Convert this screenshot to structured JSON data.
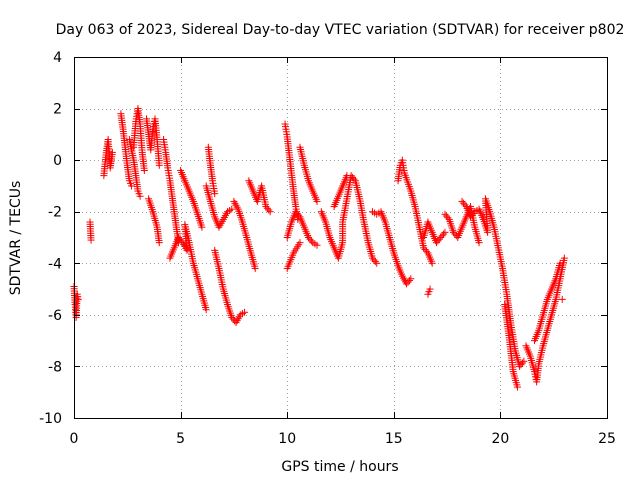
{
  "chart_data": {
    "type": "scatter",
    "title": "Day 063 of 2023, Sidereal Day-to-day VTEC variation (SDTVAR) for receiver p802",
    "xlabel": "GPS time / hours",
    "ylabel": "SDTVAR / TECUs",
    "xlim": [
      0,
      25
    ],
    "ylim": [
      -10,
      4
    ],
    "xticks": [
      0,
      5,
      10,
      15,
      20,
      25
    ],
    "yticks": [
      -10,
      -8,
      -6,
      -4,
      -2,
      0,
      2,
      4
    ],
    "grid": true,
    "marker": "+",
    "color": "#ff0000",
    "series": [
      {
        "name": "SDTVAR",
        "points": [
          [
            0.0,
            -4.9
          ],
          [
            0.05,
            -5.6
          ],
          [
            0.1,
            -6.1
          ],
          [
            0.15,
            -5.2
          ],
          [
            0.2,
            -5.4
          ],
          [
            0.75,
            -2.4
          ],
          [
            0.8,
            -3.1
          ],
          [
            1.4,
            -0.6
          ],
          [
            1.5,
            0.2
          ],
          [
            1.6,
            0.8
          ],
          [
            1.7,
            -0.3
          ],
          [
            1.8,
            0.3
          ],
          [
            2.2,
            1.8
          ],
          [
            2.3,
            1.2
          ],
          [
            2.4,
            0.5
          ],
          [
            2.5,
            -0.2
          ],
          [
            2.6,
            -0.8
          ],
          [
            2.7,
            -1.0
          ],
          [
            2.8,
            0.5
          ],
          [
            2.9,
            1.5
          ],
          [
            3.0,
            2.0
          ],
          [
            3.1,
            1.4
          ],
          [
            3.2,
            0.3
          ],
          [
            3.3,
            -0.4
          ],
          [
            2.6,
            0.8
          ],
          [
            2.8,
            0.0
          ],
          [
            3.0,
            -1.2
          ],
          [
            3.1,
            -1.4
          ],
          [
            3.4,
            1.6
          ],
          [
            3.5,
            1.0
          ],
          [
            3.6,
            0.4
          ],
          [
            3.7,
            1.2
          ],
          [
            3.8,
            1.6
          ],
          [
            3.9,
            0.8
          ],
          [
            4.0,
            -0.2
          ],
          [
            3.5,
            -1.5
          ],
          [
            3.7,
            -2.0
          ],
          [
            3.9,
            -2.6
          ],
          [
            4.0,
            -3.2
          ],
          [
            4.2,
            0.8
          ],
          [
            4.3,
            0.3
          ],
          [
            4.4,
            -0.3
          ],
          [
            4.5,
            -0.8
          ],
          [
            4.6,
            -1.4
          ],
          [
            4.7,
            -2.0
          ],
          [
            4.8,
            -2.6
          ],
          [
            4.9,
            -3.2
          ],
          [
            4.5,
            -3.8
          ],
          [
            4.7,
            -3.4
          ],
          [
            4.9,
            -3.0
          ],
          [
            5.1,
            -3.2
          ],
          [
            5.3,
            -3.5
          ],
          [
            5.2,
            -2.5
          ],
          [
            5.4,
            -3.2
          ],
          [
            5.6,
            -4.0
          ],
          [
            5.8,
            -4.6
          ],
          [
            6.0,
            -5.2
          ],
          [
            6.2,
            -5.8
          ],
          [
            5.0,
            -0.4
          ],
          [
            5.2,
            -0.8
          ],
          [
            5.4,
            -1.2
          ],
          [
            5.6,
            -1.6
          ],
          [
            5.8,
            -2.1
          ],
          [
            6.0,
            -2.6
          ],
          [
            6.3,
            0.5
          ],
          [
            6.4,
            -0.2
          ],
          [
            6.5,
            -0.8
          ],
          [
            6.6,
            -1.3
          ],
          [
            6.2,
            -1.0
          ],
          [
            6.4,
            -1.6
          ],
          [
            6.6,
            -2.2
          ],
          [
            6.8,
            -2.6
          ],
          [
            7.0,
            -2.3
          ],
          [
            7.2,
            -2.0
          ],
          [
            7.4,
            -1.9
          ],
          [
            6.6,
            -3.5
          ],
          [
            6.8,
            -4.2
          ],
          [
            7.0,
            -5.0
          ],
          [
            7.2,
            -5.6
          ],
          [
            7.4,
            -6.1
          ],
          [
            7.6,
            -6.3
          ],
          [
            7.8,
            -6.0
          ],
          [
            8.0,
            -5.9
          ],
          [
            7.5,
            -1.6
          ],
          [
            7.7,
            -1.9
          ],
          [
            7.9,
            -2.4
          ],
          [
            8.1,
            -3.0
          ],
          [
            8.3,
            -3.6
          ],
          [
            8.5,
            -4.2
          ],
          [
            8.2,
            -0.8
          ],
          [
            8.4,
            -1.2
          ],
          [
            8.6,
            -1.6
          ],
          [
            8.8,
            -1.0
          ],
          [
            9.0,
            -1.8
          ],
          [
            9.2,
            -2.0
          ],
          [
            9.9,
            1.4
          ],
          [
            10.0,
            0.9
          ],
          [
            10.1,
            0.2
          ],
          [
            10.2,
            -0.5
          ],
          [
            10.3,
            -1.2
          ],
          [
            10.4,
            -1.8
          ],
          [
            10.5,
            -2.3
          ],
          [
            10.0,
            -3.0
          ],
          [
            10.2,
            -2.4
          ],
          [
            10.4,
            -2.0
          ],
          [
            10.6,
            -2.2
          ],
          [
            10.8,
            -2.6
          ],
          [
            11.0,
            -3.0
          ],
          [
            11.2,
            -3.2
          ],
          [
            11.4,
            -3.3
          ],
          [
            10.6,
            0.5
          ],
          [
            10.8,
            -0.2
          ],
          [
            11.0,
            -0.8
          ],
          [
            11.2,
            -1.2
          ],
          [
            11.4,
            -1.6
          ],
          [
            10.0,
            -4.2
          ],
          [
            10.3,
            -3.6
          ],
          [
            10.6,
            -3.2
          ],
          [
            11.6,
            -2.0
          ],
          [
            11.8,
            -2.4
          ],
          [
            12.0,
            -3.0
          ],
          [
            12.2,
            -3.4
          ],
          [
            12.4,
            -3.8
          ],
          [
            12.6,
            -3.2
          ],
          [
            12.6,
            -2.4
          ],
          [
            12.8,
            -1.5
          ],
          [
            13.0,
            -0.6
          ],
          [
            13.2,
            -0.8
          ],
          [
            13.4,
            -1.5
          ],
          [
            13.6,
            -2.4
          ],
          [
            13.8,
            -3.2
          ],
          [
            14.0,
            -3.8
          ],
          [
            14.2,
            -4.0
          ],
          [
            12.2,
            -1.8
          ],
          [
            12.4,
            -1.4
          ],
          [
            12.6,
            -1.0
          ],
          [
            12.8,
            -0.6
          ],
          [
            14.0,
            -2.0
          ],
          [
            14.2,
            -2.1
          ],
          [
            14.4,
            -2.0
          ],
          [
            14.6,
            -2.4
          ],
          [
            14.8,
            -3.0
          ],
          [
            15.0,
            -3.6
          ],
          [
            15.2,
            -4.1
          ],
          [
            15.4,
            -4.5
          ],
          [
            15.6,
            -4.8
          ],
          [
            15.8,
            -4.6
          ],
          [
            15.2,
            -0.8
          ],
          [
            15.3,
            -0.2
          ],
          [
            15.4,
            0.0
          ],
          [
            15.5,
            -0.5
          ],
          [
            15.8,
            -1.2
          ],
          [
            16.0,
            -1.8
          ],
          [
            16.2,
            -2.6
          ],
          [
            16.4,
            -3.4
          ],
          [
            16.6,
            -3.6
          ],
          [
            16.8,
            -4.0
          ],
          [
            16.4,
            -3.0
          ],
          [
            16.6,
            -2.4
          ],
          [
            16.8,
            -2.8
          ],
          [
            17.0,
            -3.2
          ],
          [
            17.2,
            -3.0
          ],
          [
            17.4,
            -2.8
          ],
          [
            16.6,
            -5.2
          ],
          [
            16.7,
            -5.0
          ],
          [
            17.4,
            -2.1
          ],
          [
            17.6,
            -2.3
          ],
          [
            17.8,
            -2.8
          ],
          [
            18.0,
            -3.0
          ],
          [
            18.2,
            -2.6
          ],
          [
            18.4,
            -2.2
          ],
          [
            18.6,
            -1.8
          ],
          [
            18.8,
            -2.6
          ],
          [
            19.0,
            -3.2
          ],
          [
            18.2,
            -1.6
          ],
          [
            18.4,
            -1.8
          ],
          [
            18.6,
            -2.2
          ],
          [
            18.8,
            -2.0
          ],
          [
            19.0,
            -1.9
          ],
          [
            19.2,
            -2.3
          ],
          [
            19.4,
            -2.8
          ],
          [
            19.3,
            -1.5
          ],
          [
            19.5,
            -2.0
          ],
          [
            19.7,
            -2.6
          ],
          [
            19.9,
            -3.4
          ],
          [
            20.1,
            -4.2
          ],
          [
            20.3,
            -5.2
          ],
          [
            20.5,
            -6.4
          ],
          [
            20.7,
            -7.4
          ],
          [
            20.9,
            -8.0
          ],
          [
            21.1,
            -7.8
          ],
          [
            20.2,
            -5.6
          ],
          [
            20.4,
            -6.8
          ],
          [
            20.6,
            -8.2
          ],
          [
            20.8,
            -8.8
          ],
          [
            21.2,
            -7.2
          ],
          [
            21.4,
            -7.6
          ],
          [
            21.6,
            -8.2
          ],
          [
            21.7,
            -8.6
          ],
          [
            21.8,
            -7.9
          ],
          [
            22.0,
            -7.2
          ],
          [
            22.2,
            -6.6
          ],
          [
            22.4,
            -6.0
          ],
          [
            22.6,
            -5.4
          ],
          [
            22.8,
            -4.6
          ],
          [
            23.0,
            -3.8
          ],
          [
            21.6,
            -7.0
          ],
          [
            21.8,
            -6.6
          ],
          [
            22.0,
            -6.0
          ],
          [
            22.2,
            -5.4
          ],
          [
            22.4,
            -5.0
          ],
          [
            22.6,
            -4.6
          ],
          [
            22.8,
            -4.0
          ],
          [
            22.9,
            -5.4
          ]
        ]
      }
    ]
  }
}
